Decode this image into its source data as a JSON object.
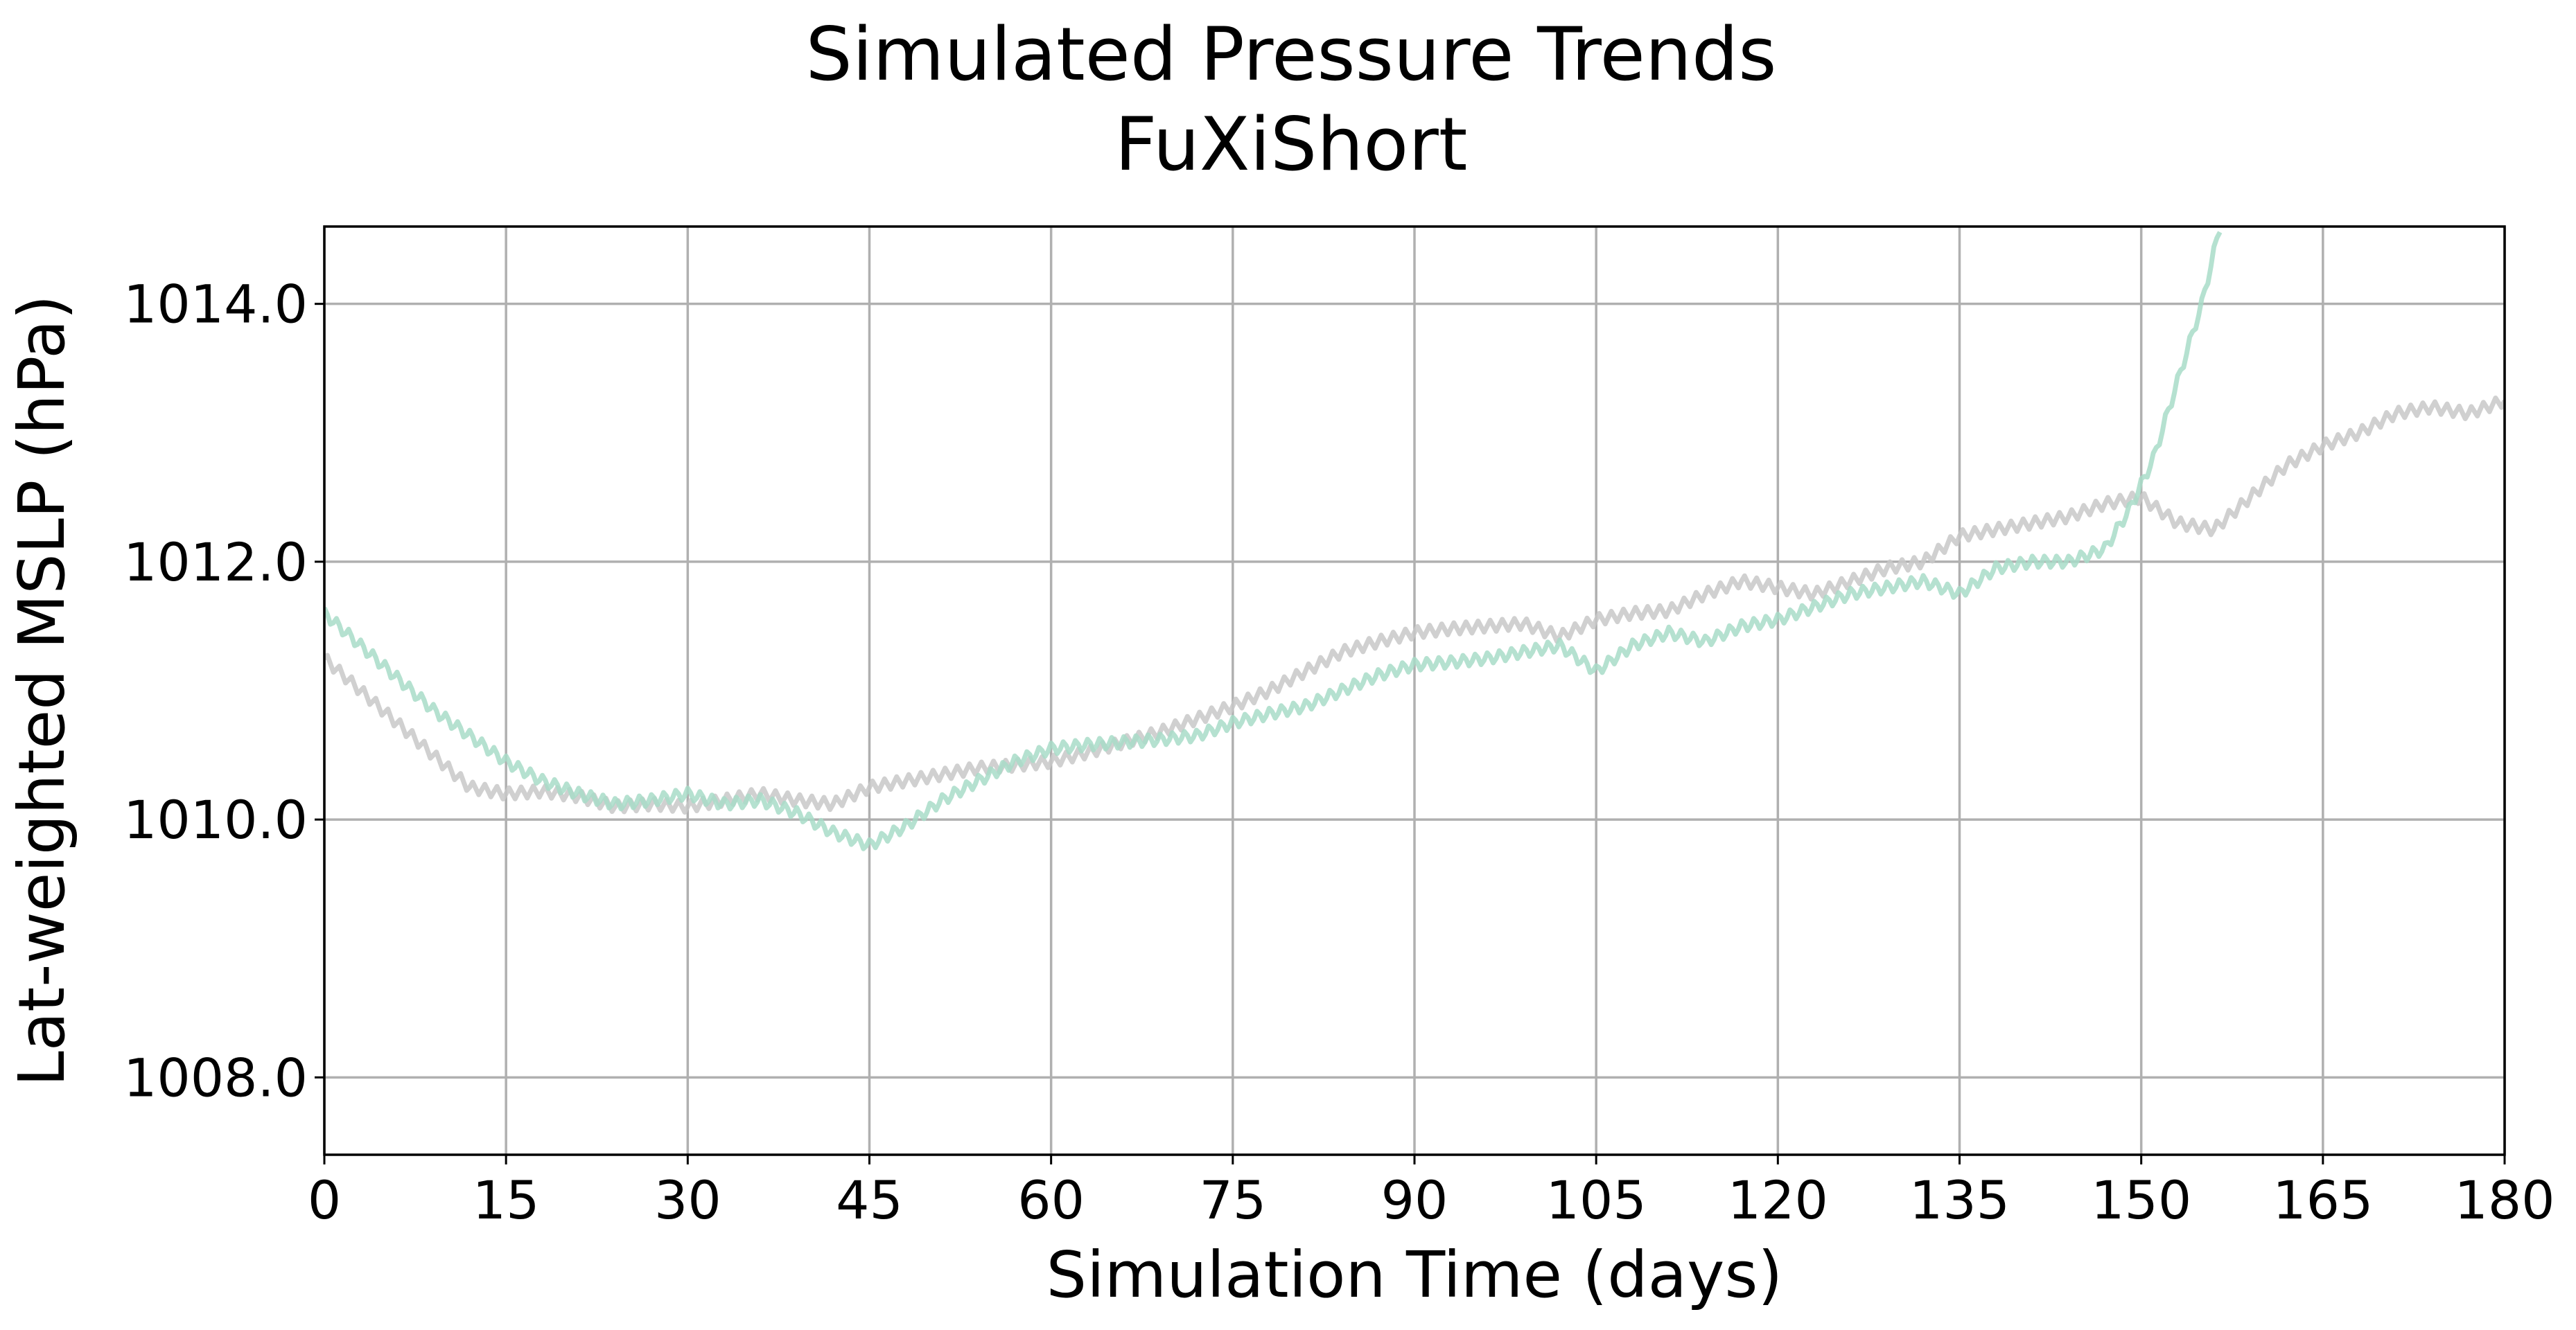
{
  "chart_data": {
    "type": "line",
    "title": [
      "Simulated Pressure Trends",
      "FuXiShort"
    ],
    "xlabel": "Simulation Time (days)",
    "ylabel": "Lat-weighted MSLP (hPa)",
    "xlim": [
      0,
      180
    ],
    "ylim": [
      1007.4,
      1014.6
    ],
    "xticks": [
      0,
      15,
      30,
      45,
      60,
      75,
      90,
      105,
      120,
      135,
      150,
      165,
      180
    ],
    "xtick_labels": [
      "0",
      "15",
      "30",
      "45",
      "60",
      "75",
      "90",
      "105",
      "120",
      "135",
      "150",
      "165",
      "180"
    ],
    "yticks": [
      1008.0,
      1010.0,
      1012.0,
      1014.0
    ],
    "ytick_labels": [
      "1008.0",
      "1010.0",
      "1012.0",
      "1014.0"
    ],
    "grid": true,
    "legend": "none",
    "series": [
      {
        "color": "#c8c8c8",
        "x": [
          0,
          3,
          6,
          9,
          12,
          15,
          18,
          21,
          24,
          27,
          30,
          33,
          36,
          39,
          42,
          45,
          48,
          51,
          54,
          57,
          60,
          63,
          66,
          69,
          72,
          75,
          78,
          81,
          84,
          87,
          90,
          93,
          96,
          99,
          102,
          105,
          108,
          111,
          114,
          117,
          120,
          123,
          126,
          129,
          132,
          135,
          138,
          141,
          144,
          147,
          150,
          153,
          156,
          159,
          162,
          165,
          168,
          171,
          174,
          177,
          180
        ],
        "y": [
          1011.25,
          1011.0,
          1010.75,
          1010.5,
          1010.25,
          1010.2,
          1010.22,
          1010.18,
          1010.1,
          1010.12,
          1010.1,
          1010.15,
          1010.2,
          1010.15,
          1010.12,
          1010.25,
          1010.3,
          1010.35,
          1010.4,
          1010.42,
          1010.45,
          1010.52,
          1010.6,
          1010.68,
          1010.78,
          1010.88,
          1011.0,
          1011.15,
          1011.3,
          1011.38,
          1011.45,
          1011.48,
          1011.5,
          1011.52,
          1011.42,
          1011.55,
          1011.6,
          1011.62,
          1011.75,
          1011.85,
          1011.8,
          1011.75,
          1011.85,
          1011.95,
          1012.0,
          1012.2,
          1012.25,
          1012.3,
          1012.35,
          1012.45,
          1012.5,
          1012.3,
          1012.25,
          1012.5,
          1012.75,
          1012.9,
          1013.0,
          1013.15,
          1013.2,
          1013.15,
          1013.25
        ]
      },
      {
        "color": "#a8dcc8",
        "x": [
          0,
          3,
          6,
          9,
          12,
          15,
          18,
          21,
          24,
          27,
          30,
          33,
          36,
          39,
          42,
          45,
          48,
          51,
          54,
          57,
          60,
          63,
          66,
          69,
          72,
          75,
          78,
          81,
          84,
          87,
          90,
          93,
          96,
          99,
          102,
          105,
          108,
          111,
          114,
          117,
          120,
          123,
          126,
          129,
          132,
          135,
          138,
          141,
          144,
          147,
          149,
          151,
          153,
          155,
          156.5
        ],
        "y": [
          1011.6,
          1011.35,
          1011.1,
          1010.85,
          1010.65,
          1010.45,
          1010.3,
          1010.2,
          1010.12,
          1010.15,
          1010.2,
          1010.12,
          1010.15,
          1010.05,
          1009.9,
          1009.8,
          1009.95,
          1010.15,
          1010.3,
          1010.45,
          1010.55,
          1010.58,
          1010.6,
          1010.62,
          1010.65,
          1010.75,
          1010.82,
          1010.88,
          1011.0,
          1011.12,
          1011.2,
          1011.22,
          1011.25,
          1011.3,
          1011.35,
          1011.15,
          1011.35,
          1011.45,
          1011.38,
          1011.5,
          1011.55,
          1011.65,
          1011.75,
          1011.8,
          1011.85,
          1011.75,
          1011.95,
          1012.0,
          1012.0,
          1012.1,
          1012.4,
          1012.8,
          1013.4,
          1014.0,
          1014.6
        ]
      }
    ]
  }
}
